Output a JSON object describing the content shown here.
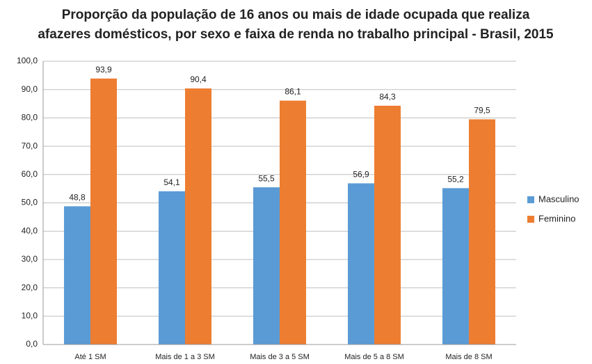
{
  "chart_data": {
    "type": "bar",
    "title": [
      "Proporção da população de 16 anos ou mais de idade ocupada que realiza",
      "afazeres domésticos, por sexo e faixa de renda no trabalho principal - Brasil, 2015"
    ],
    "categories": [
      "Até 1 SM",
      "Mais de 1 a 3 SM",
      "Mais de 3 a 5 SM",
      "Mais de 5 a 8 SM",
      "Mais de 8 SM"
    ],
    "series": [
      {
        "name": "Masculino",
        "color": "#5b9bd5",
        "values": [
          48.8,
          54.1,
          55.5,
          56.9,
          55.2
        ],
        "value_labels": [
          "48,8",
          "54,1",
          "55,5",
          "56,9",
          "55,2"
        ]
      },
      {
        "name": "Feminino",
        "color": "#ed7d31",
        "values": [
          93.9,
          90.4,
          86.1,
          84.3,
          79.5
        ],
        "value_labels": [
          "93,9",
          "90,4",
          "86,1",
          "84,3",
          "79,5"
        ]
      }
    ],
    "ylim": [
      0,
      100
    ],
    "yticks": [
      {
        "value": 0,
        "label": "0,0"
      },
      {
        "value": 10,
        "label": "10,0"
      },
      {
        "value": 20,
        "label": "20,0"
      },
      {
        "value": 30,
        "label": "30,0"
      },
      {
        "value": 40,
        "label": "40,0"
      },
      {
        "value": 50,
        "label": "50,0"
      },
      {
        "value": 60,
        "label": "60,0"
      },
      {
        "value": 70,
        "label": "70,0"
      },
      {
        "value": 80,
        "label": "80,0"
      },
      {
        "value": 90,
        "label": "90,0"
      },
      {
        "value": 100,
        "label": "100,0"
      }
    ],
    "grid": true,
    "legend": "right"
  }
}
